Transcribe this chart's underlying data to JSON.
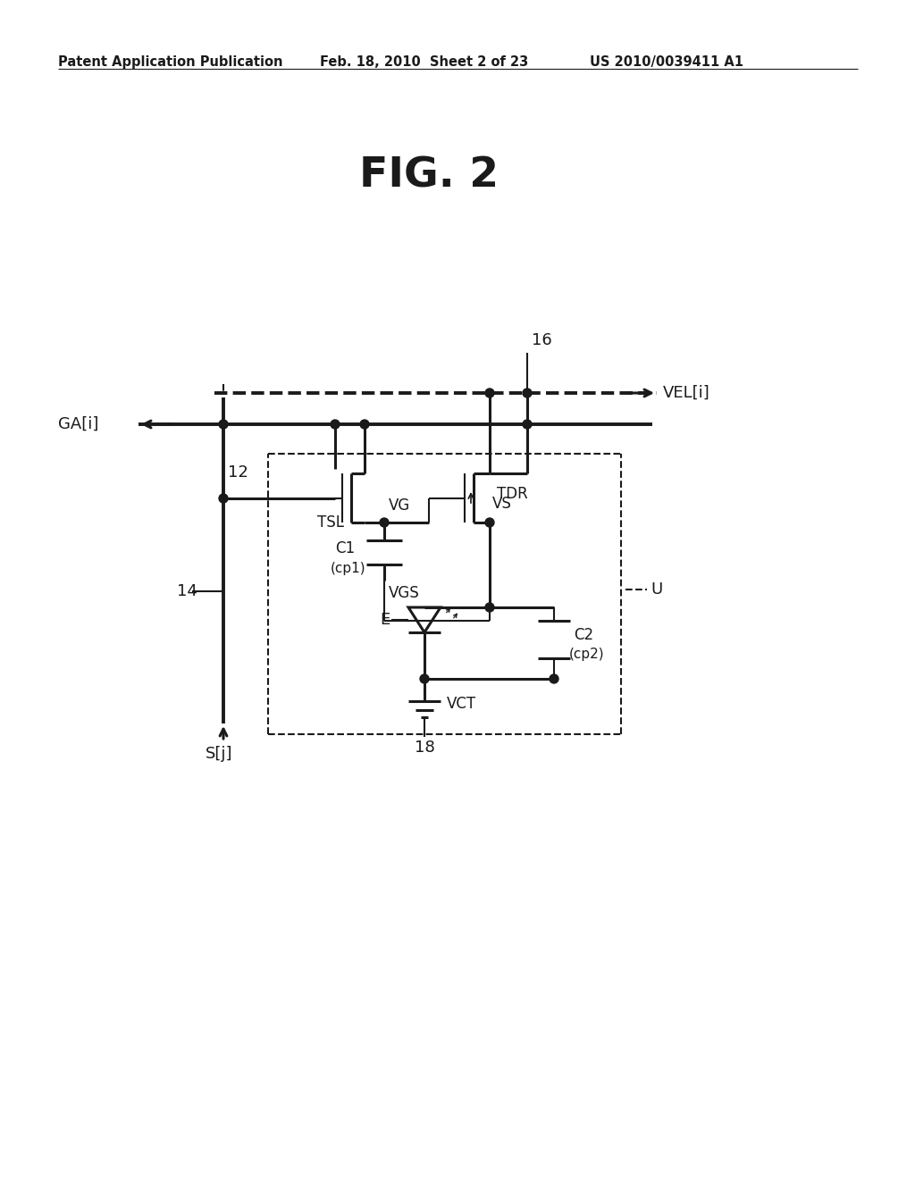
{
  "fig_title": "FIG. 2",
  "header_left": "Patent Application Publication",
  "header_mid": "Feb. 18, 2010  Sheet 2 of 23",
  "header_right": "US 2010/0039411 A1",
  "background": "#ffffff",
  "line_color": "#1a1a1a",
  "lw": 1.5,
  "lw_thick": 2.2,
  "lw_bus": 2.8
}
